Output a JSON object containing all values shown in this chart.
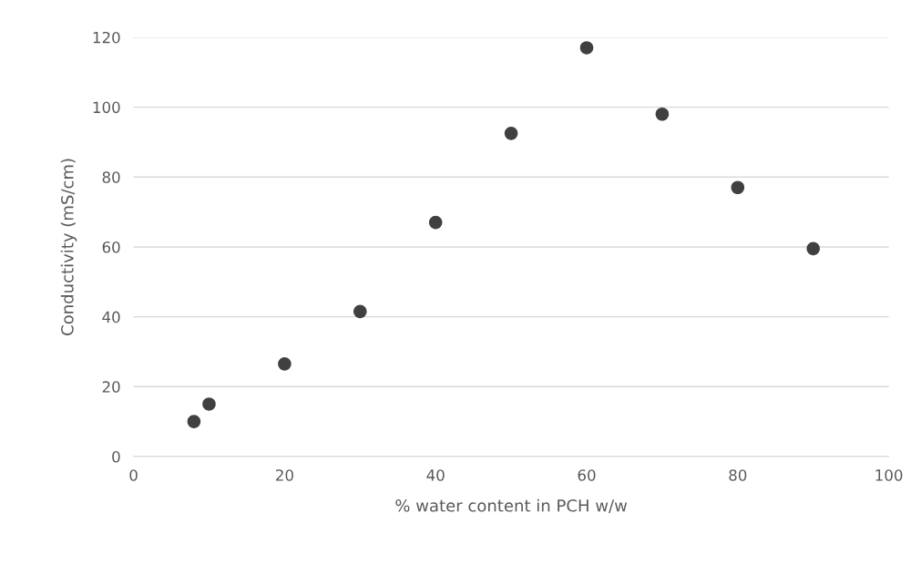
{
  "chart_data": {
    "type": "scatter",
    "xlabel": "% water content in PCH w/w",
    "ylabel": "Conductivity (mS/cm)",
    "x": [
      8,
      10,
      20,
      30,
      40,
      50,
      60,
      70,
      80,
      90
    ],
    "values": [
      10,
      15,
      26.5,
      41.5,
      67,
      92.5,
      117,
      98,
      77,
      59.5
    ],
    "color": "#404040",
    "marker": "circle",
    "xlim": [
      0,
      100
    ],
    "xticks": [
      0,
      20,
      40,
      60,
      80,
      100
    ],
    "ylim": [
      0,
      120
    ],
    "yticks": [
      0,
      20,
      40,
      60,
      80,
      100,
      120
    ],
    "grid": "y"
  }
}
